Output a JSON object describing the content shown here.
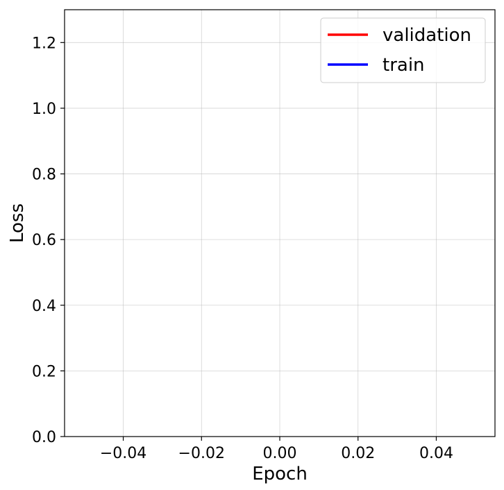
{
  "chart_data": {
    "type": "line",
    "title": "",
    "xlabel": "Epoch",
    "ylabel": "Loss",
    "xlim": [
      -0.055,
      0.055
    ],
    "ylim": [
      0.0,
      1.3
    ],
    "x_ticks": [
      -0.04,
      -0.02,
      0.0,
      0.02,
      0.04
    ],
    "x_tick_labels": [
      "−0.04",
      "−0.02",
      "0.00",
      "0.02",
      "0.04"
    ],
    "y_ticks": [
      0.0,
      0.2,
      0.4,
      0.6,
      0.8,
      1.0,
      1.2
    ],
    "y_tick_labels": [
      "0.0",
      "0.2",
      "0.4",
      "0.6",
      "0.8",
      "1.0",
      "1.2"
    ],
    "grid": true,
    "legend_position": "top-right",
    "series": [
      {
        "name": "validation",
        "color": "#ff0000",
        "x": [],
        "y": []
      },
      {
        "name": "train",
        "color": "#0000ff",
        "x": [],
        "y": []
      }
    ]
  }
}
